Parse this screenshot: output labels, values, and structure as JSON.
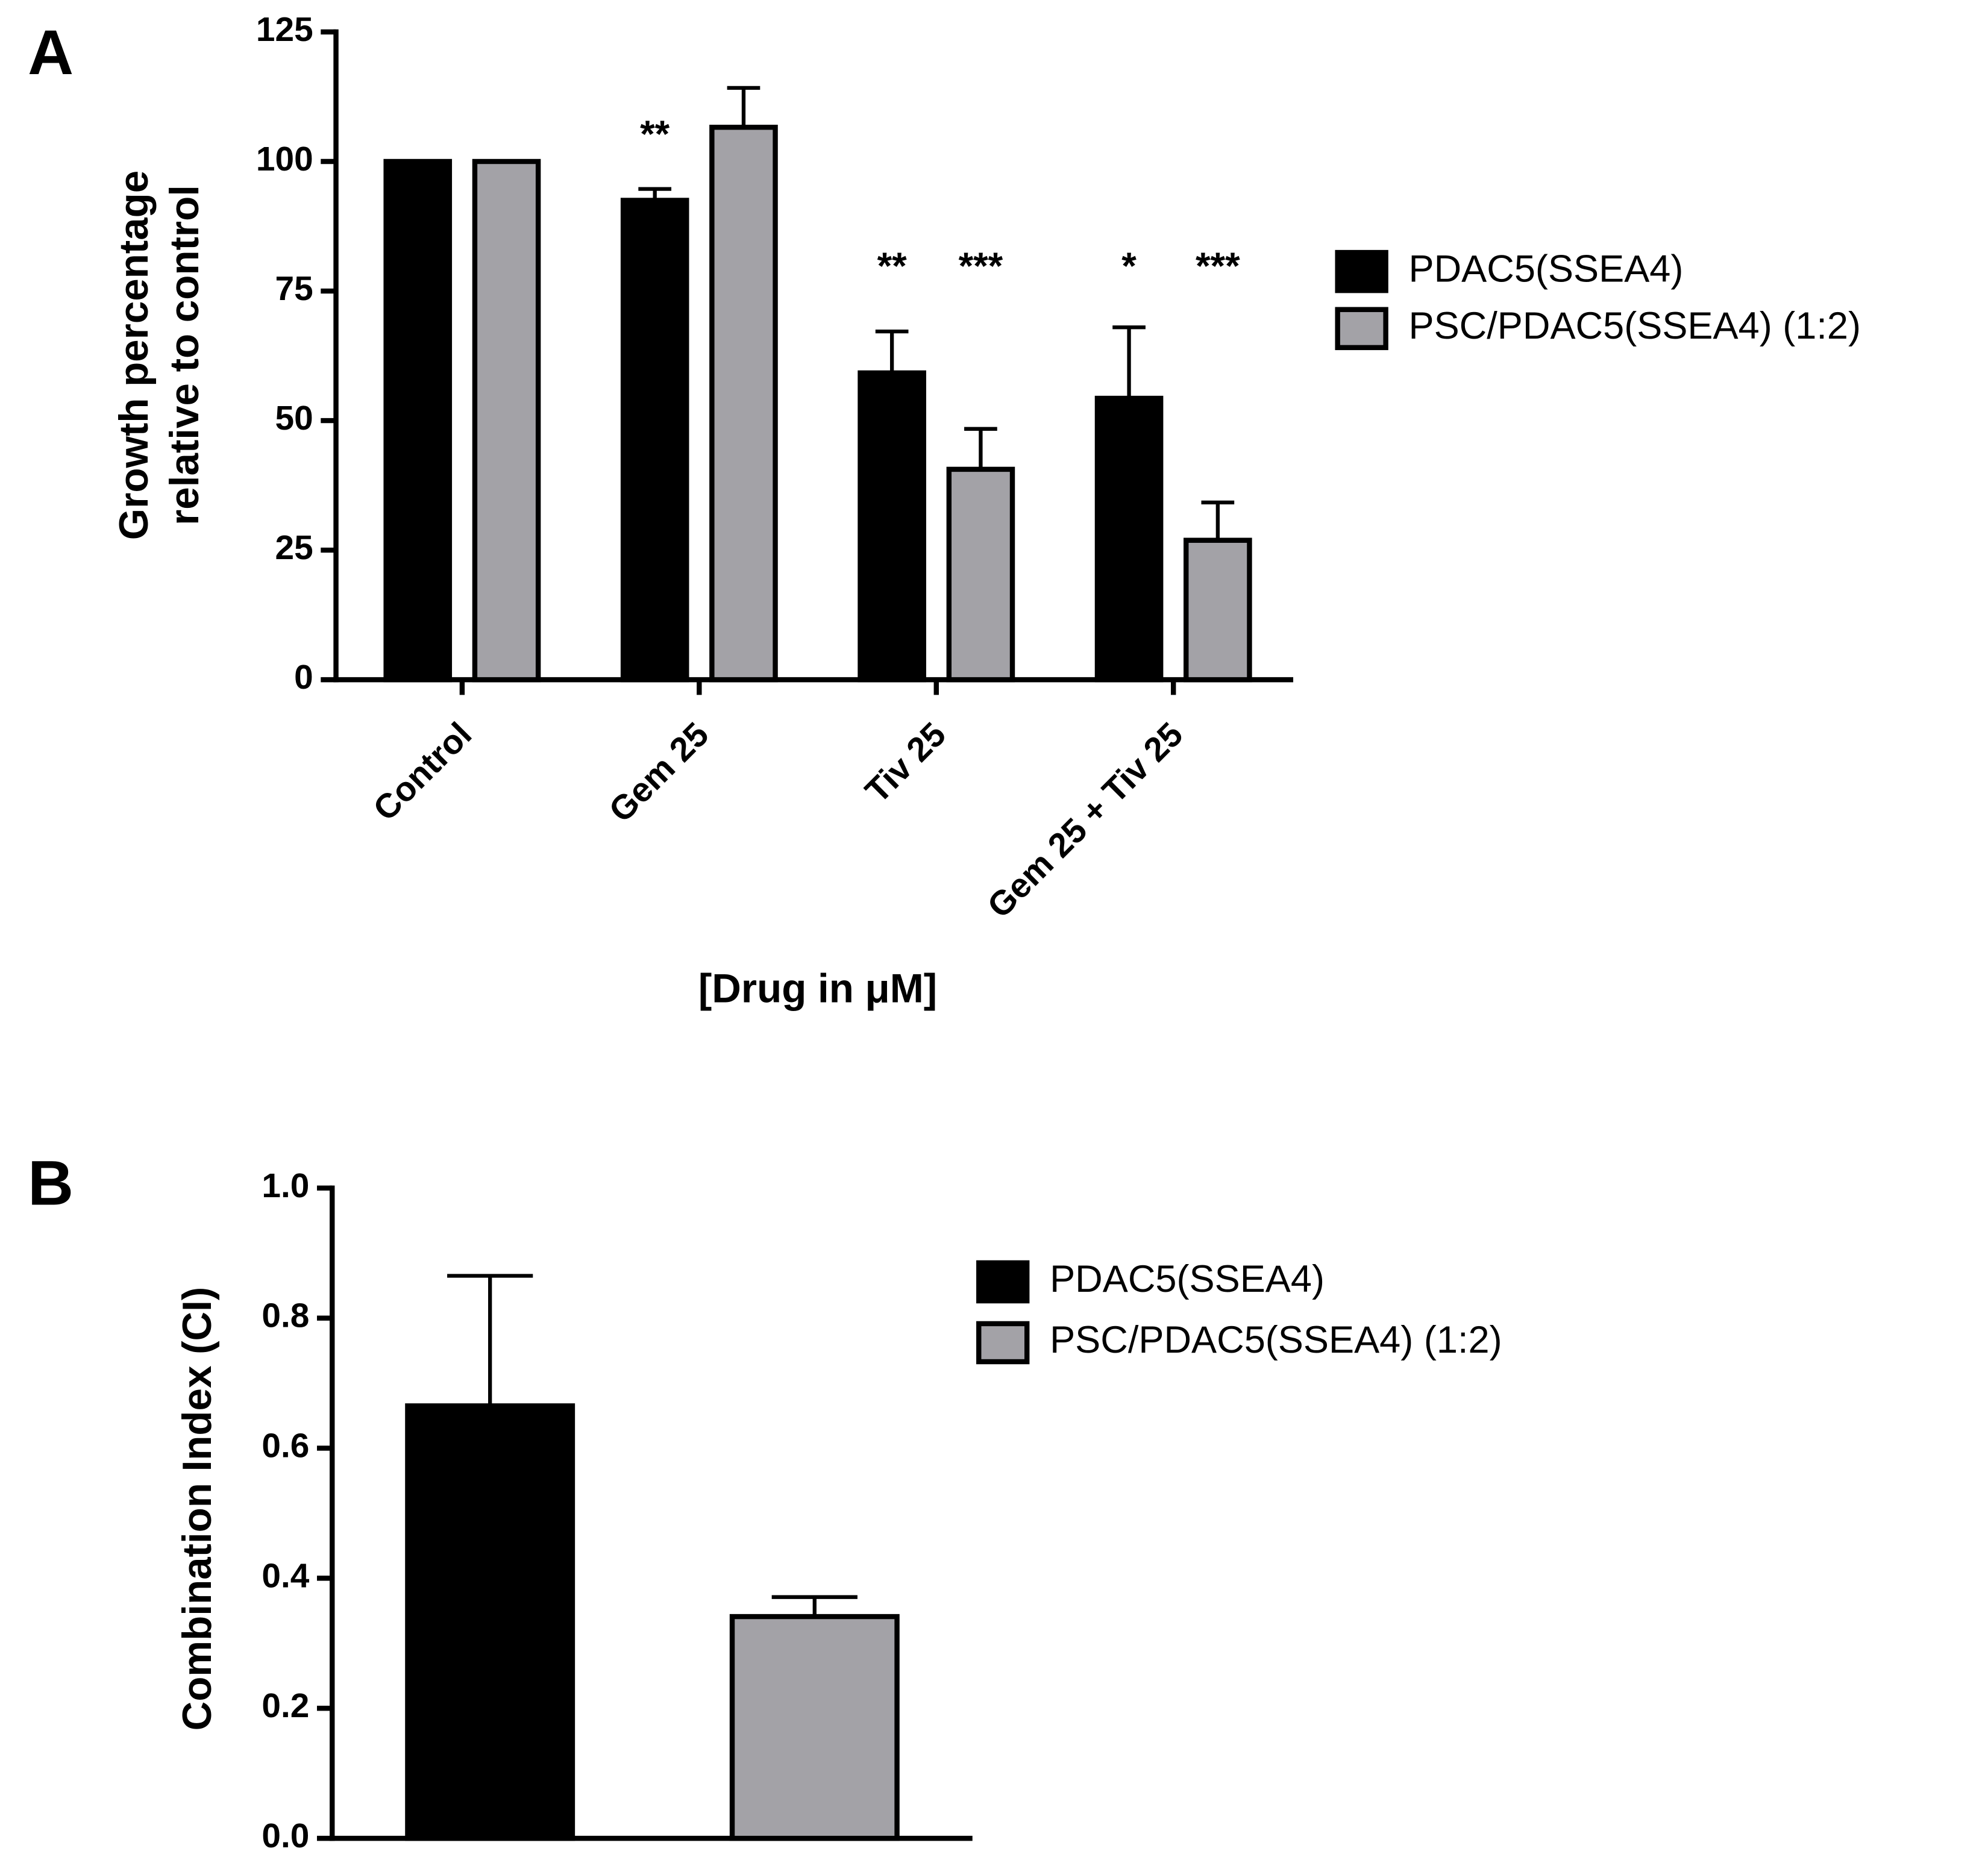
{
  "chart_data": [
    {
      "type": "bar",
      "panel": "A",
      "ylabel": [
        "Growth percentage",
        "relative to control"
      ],
      "xlabel": "[Drug in μM]",
      "categories": [
        "Control",
        "Gem 25",
        "Tiv 25",
        "Gem 25 + Tiv 25"
      ],
      "series": [
        {
          "name": "PDAC5(SSEA4)",
          "color": "#000000",
          "values": [
            100,
            92.5,
            59.2,
            54.3
          ],
          "errors": [
            0,
            2.2,
            8,
            13.7
          ],
          "annotations": [
            null,
            "**",
            "**",
            "*"
          ]
        },
        {
          "name": "PSC/PDAC5(SSEA4) (1:2)",
          "color": "#a3a2a7",
          "values": [
            100,
            106.6,
            40.6,
            26.9
          ],
          "errors": [
            0,
            7.6,
            7.8,
            7.3
          ],
          "annotations": [
            null,
            null,
            "***",
            "***"
          ]
        }
      ],
      "ylim": [
        0,
        125
      ],
      "yticks": [
        0,
        25,
        50,
        75,
        100,
        125
      ]
    },
    {
      "type": "bar",
      "panel": "B",
      "ylabel": [
        "Combination Index (CI)"
      ],
      "categories": [
        null
      ],
      "series": [
        {
          "name": "PDAC5(SSEA4)",
          "color": "#000000",
          "values": [
            0.665
          ],
          "errors": [
            0.2
          ]
        },
        {
          "name": "PSC/PDAC5(SSEA4) (1:2)",
          "color": "#a3a2a7",
          "values": [
            0.341
          ],
          "errors": [
            0.03
          ]
        }
      ],
      "ylim": [
        0,
        1
      ],
      "yticks": [
        {
          "value": 0,
          "label": "0.0"
        },
        0.2,
        0.4,
        0.6,
        0.8,
        {
          "value": 1,
          "label": "1.0"
        }
      ]
    }
  ]
}
